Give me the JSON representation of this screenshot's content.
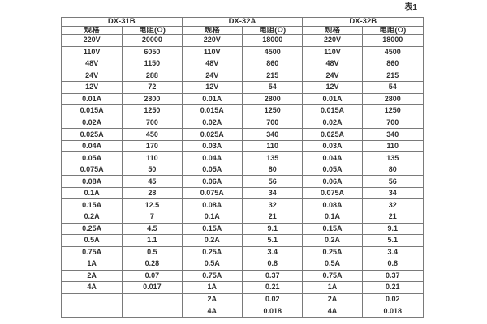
{
  "page": {
    "table_caption": "表1"
  },
  "table": {
    "groups": [
      {
        "name": "DX-31B",
        "spec_header": "规格",
        "resistance_header": "电阻(Ω)"
      },
      {
        "name": "DX-32A",
        "spec_header": "规格",
        "resistance_header": "电阻(Ω)"
      },
      {
        "name": "DX-32B",
        "spec_header": "规格",
        "resistance_header": "电阻(Ω)"
      }
    ],
    "rows": [
      [
        "220V",
        "20000",
        "220V",
        "18000",
        "220V",
        "18000"
      ],
      [
        "110V",
        "6050",
        "110V",
        "4500",
        "110V",
        "4500"
      ],
      [
        "48V",
        "1150",
        "48V",
        "860",
        "48V",
        "860"
      ],
      [
        "24V",
        "288",
        "24V",
        "215",
        "24V",
        "215"
      ],
      [
        "12V",
        "72",
        "12V",
        "54",
        "12V",
        "54"
      ],
      [
        "0.01A",
        "2800",
        "0.01A",
        "2800",
        "0.01A",
        "2800"
      ],
      [
        "0.015A",
        "1250",
        "0.015A",
        "1250",
        "0.015A",
        "1250"
      ],
      [
        "0.02A",
        "700",
        "0.02A",
        "700",
        "0.02A",
        "700"
      ],
      [
        "0.025A",
        "450",
        "0.025A",
        "340",
        "0.025A",
        "340"
      ],
      [
        "0.04A",
        "170",
        "0.03A",
        "110",
        "0.03A",
        "110"
      ],
      [
        "0.05A",
        "110",
        "0.04A",
        "135",
        "0.04A",
        "135"
      ],
      [
        "0.075A",
        "50",
        "0.05A",
        "80",
        "0.05A",
        "80"
      ],
      [
        "0.08A",
        "45",
        "0.06A",
        "56",
        "0.06A",
        "56"
      ],
      [
        "0.1A",
        "28",
        "0.075A",
        "34",
        "0.075A",
        "34"
      ],
      [
        "0.15A",
        "12.5",
        "0.08A",
        "32",
        "0.08A",
        "32"
      ],
      [
        "0.2A",
        "7",
        "0.1A",
        "21",
        "0.1A",
        "21"
      ],
      [
        "0.25A",
        "4.5",
        "0.15A",
        "9.1",
        "0.15A",
        "9.1"
      ],
      [
        "0.5A",
        "1.1",
        "0.2A",
        "5.1",
        "0.2A",
        "5.1"
      ],
      [
        "0.75A",
        "0.5",
        "0.25A",
        "3.4",
        "0.25A",
        "3.4"
      ],
      [
        "1A",
        "0.28",
        "0.5A",
        "0.8",
        "0.5A",
        "0.8"
      ],
      [
        "2A",
        "0.07",
        "0.75A",
        "0.37",
        "0.75A",
        "0.37"
      ],
      [
        "4A",
        "0.017",
        "1A",
        "0.21",
        "1A",
        "0.21"
      ],
      [
        "",
        "",
        "2A",
        "0.02",
        "2A",
        "0.02"
      ],
      [
        "",
        "",
        "4A",
        "0.018",
        "4A",
        "0.018"
      ]
    ]
  },
  "colors": {
    "background": "#ffffff",
    "border": "#7a7a7a",
    "text": "#303030"
  }
}
